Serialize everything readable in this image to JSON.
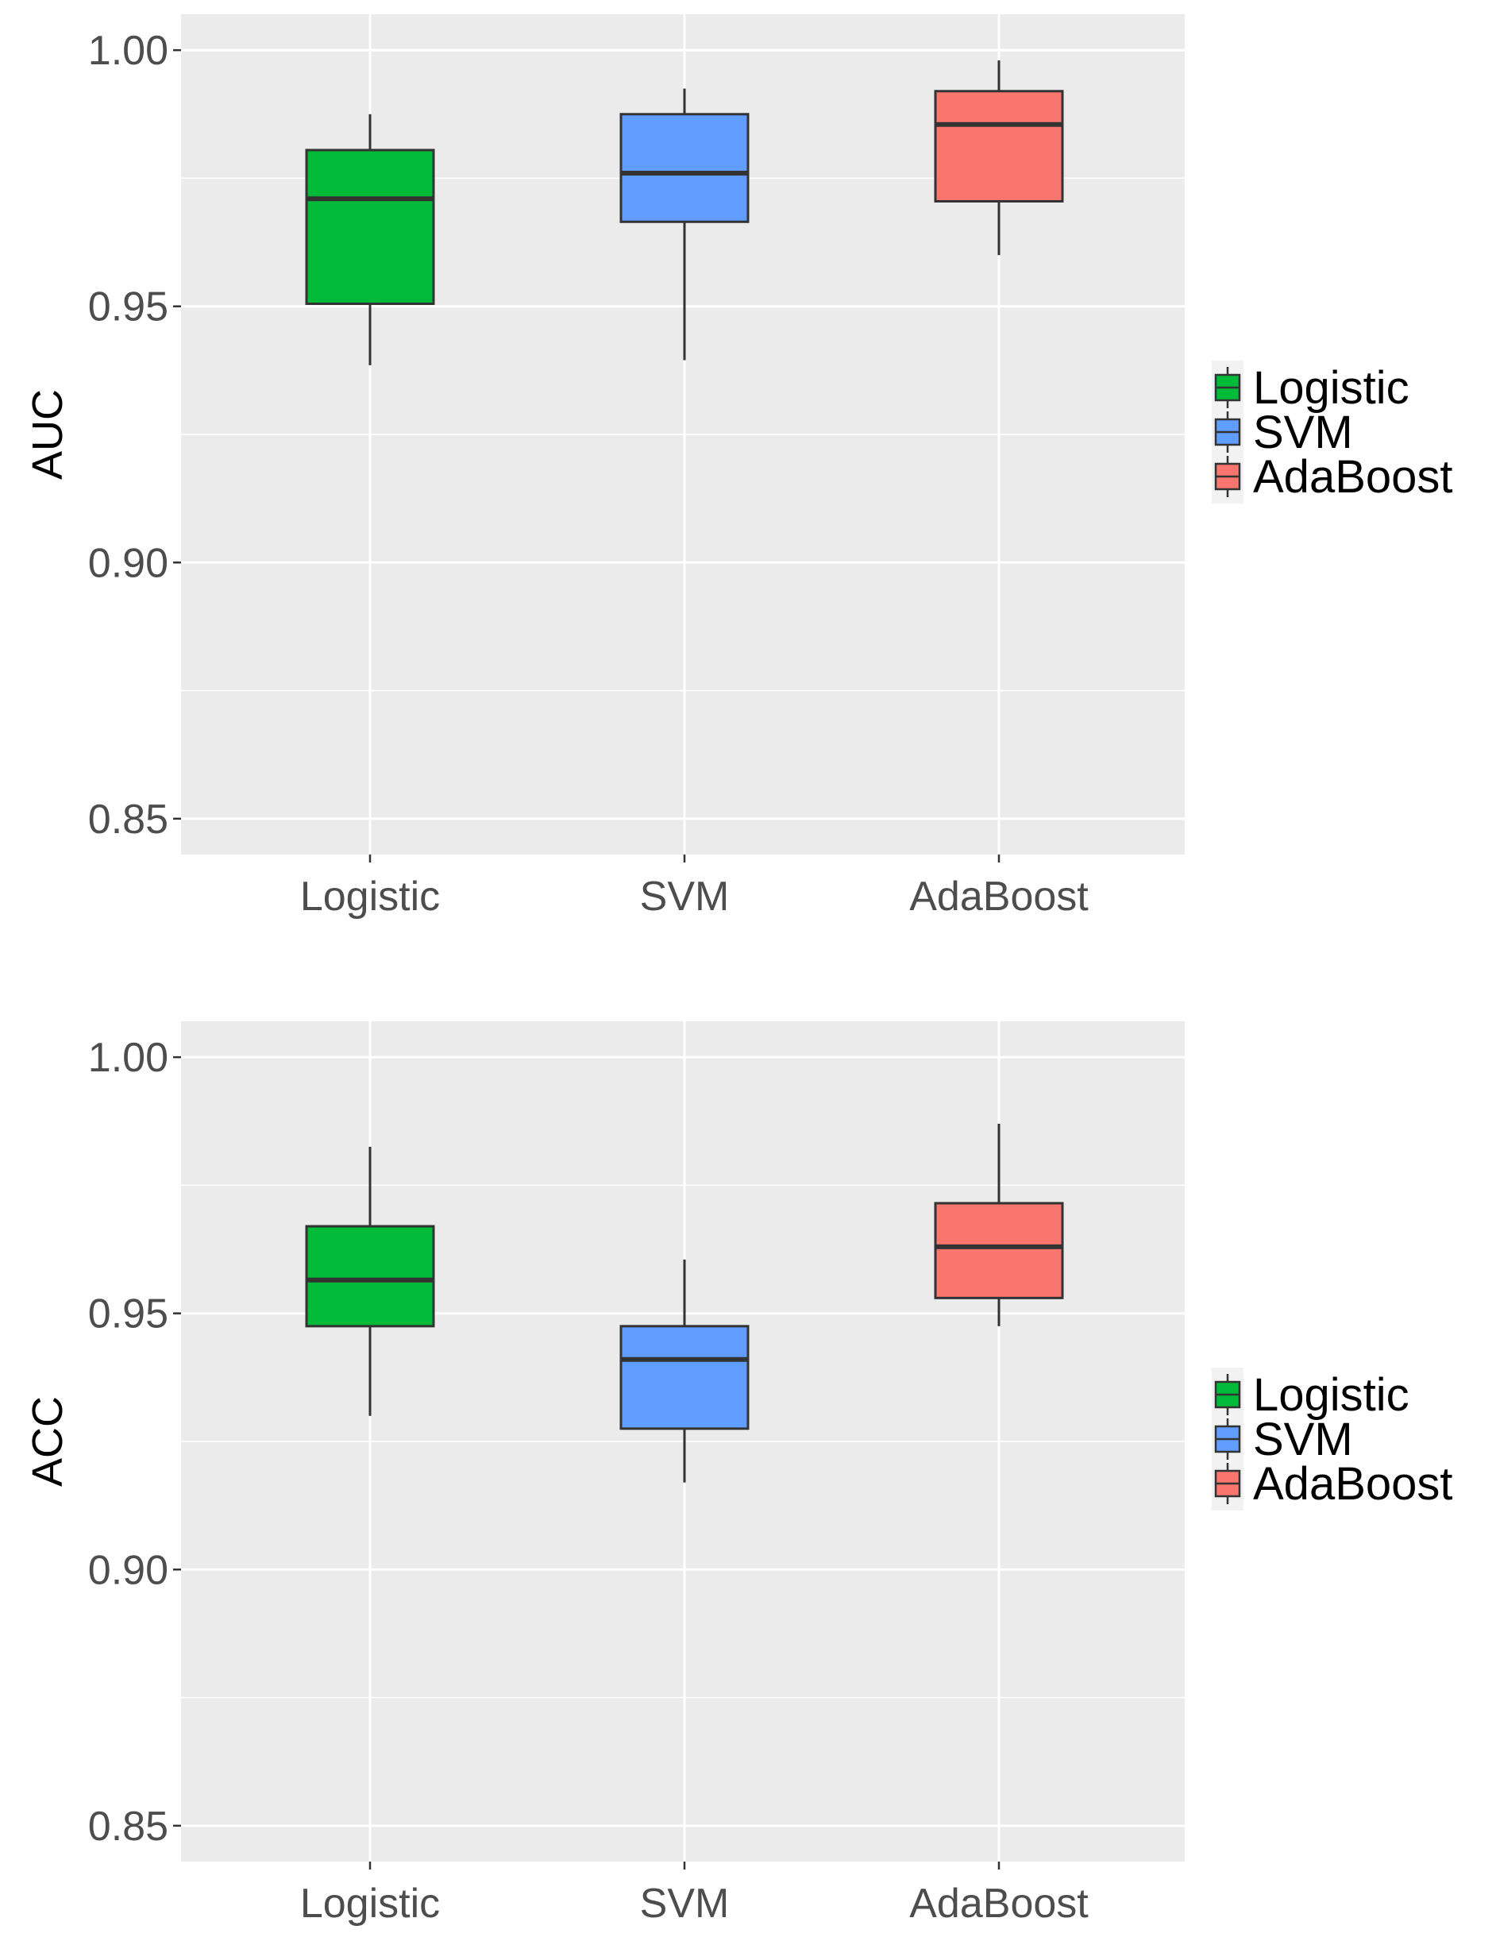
{
  "chart_data": [
    {
      "type": "boxplot",
      "ylabel": "AUC",
      "xlabel": "",
      "ylim": [
        0.843,
        1.007
      ],
      "yticks": [
        {
          "value": 0.85,
          "label": "0.85"
        },
        {
          "value": 0.9,
          "label": "0.90"
        },
        {
          "value": 0.95,
          "label": "0.95"
        },
        {
          "value": 1.0,
          "label": "1.00"
        }
      ],
      "minor_gridlines": [
        0.875,
        0.925,
        0.975
      ],
      "grid": true,
      "legend_position": "right",
      "categories": [
        "Logistic",
        "SVM",
        "AdaBoost"
      ],
      "series": [
        {
          "name": "Logistic",
          "color": "#00BA38",
          "whisker_low": 0.9385,
          "q1": 0.9505,
          "median": 0.971,
          "q3": 0.9805,
          "whisker_high": 0.9875
        },
        {
          "name": "SVM",
          "color": "#619CFF",
          "whisker_low": 0.9395,
          "q1": 0.9665,
          "median": 0.976,
          "q3": 0.9875,
          "whisker_high": 0.9925
        },
        {
          "name": "AdaBoost",
          "color": "#F8766D",
          "whisker_low": 0.96,
          "q1": 0.9705,
          "median": 0.9855,
          "q3": 0.992,
          "whisker_high": 0.998
        }
      ],
      "legend": [
        "Logistic",
        "SVM",
        "AdaBoost"
      ]
    },
    {
      "type": "boxplot",
      "ylabel": "ACC",
      "xlabel": "",
      "ylim": [
        0.843,
        1.007
      ],
      "yticks": [
        {
          "value": 0.85,
          "label": "0.85"
        },
        {
          "value": 0.9,
          "label": "0.90"
        },
        {
          "value": 0.95,
          "label": "0.95"
        },
        {
          "value": 1.0,
          "label": "1.00"
        }
      ],
      "minor_gridlines": [
        0.875,
        0.925,
        0.975
      ],
      "grid": true,
      "legend_position": "right",
      "categories": [
        "Logistic",
        "SVM",
        "AdaBoost"
      ],
      "series": [
        {
          "name": "Logistic",
          "color": "#00BA38",
          "whisker_low": 0.93,
          "q1": 0.9475,
          "median": 0.9565,
          "q3": 0.967,
          "whisker_high": 0.9825
        },
        {
          "name": "SVM",
          "color": "#619CFF",
          "whisker_low": 0.917,
          "q1": 0.9275,
          "median": 0.941,
          "q3": 0.9475,
          "whisker_high": 0.9605
        },
        {
          "name": "AdaBoost",
          "color": "#F8766D",
          "whisker_low": 0.9475,
          "q1": 0.953,
          "median": 0.963,
          "q3": 0.9715,
          "whisker_high": 0.987
        }
      ],
      "legend": [
        "Logistic",
        "SVM",
        "AdaBoost"
      ]
    }
  ]
}
